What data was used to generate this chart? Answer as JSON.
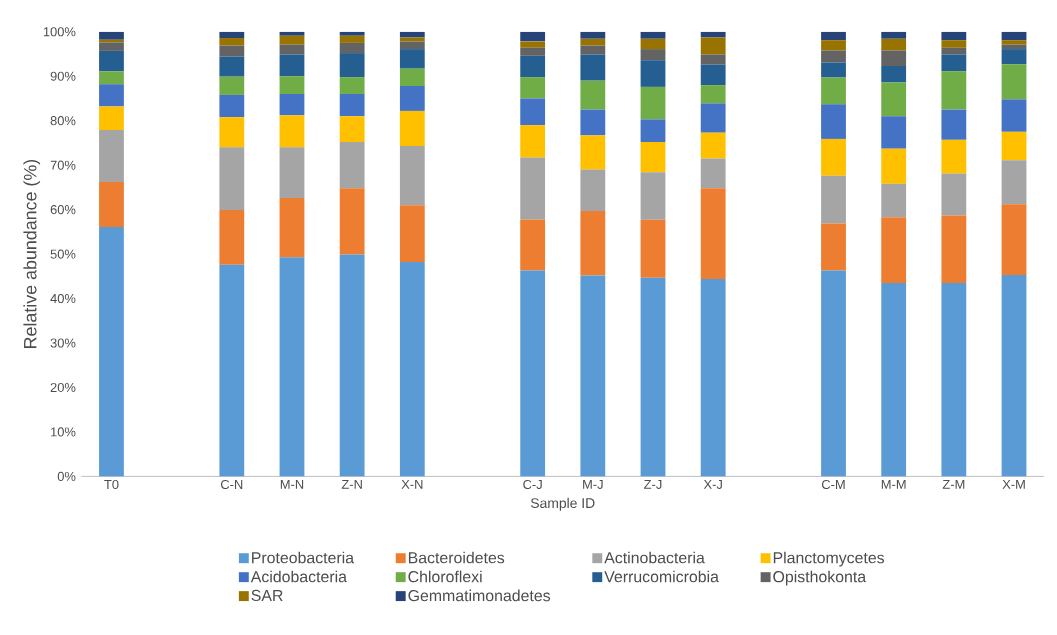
{
  "chart_data": {
    "type": "bar",
    "stacked": true,
    "xlabel": "Sample ID",
    "ylabel": "Relative abundance (%)",
    "categories": [
      "T0",
      null,
      "C-N",
      "M-N",
      "Z-N",
      "X-N",
      null,
      "C-J",
      "M-J",
      "Z-J",
      "X-J",
      null,
      "C-M",
      "M-M",
      "Z-M",
      "X-M"
    ],
    "ylim": [
      0,
      100
    ],
    "yticks": [
      {
        "value": 0,
        "label": "0%"
      },
      {
        "value": 10,
        "label": "10%"
      },
      {
        "value": 20,
        "label": "20%"
      },
      {
        "value": 30,
        "label": "30%"
      },
      {
        "value": 40,
        "label": "40%"
      },
      {
        "value": 50,
        "label": "50%"
      },
      {
        "value": 60,
        "label": "60%"
      },
      {
        "value": 70,
        "label": "70%"
      },
      {
        "value": 80,
        "label": "80%"
      },
      {
        "value": 90,
        "label": "90%"
      },
      {
        "value": 100,
        "label": "100%"
      }
    ],
    "legend": "bottom",
    "series": [
      {
        "name": "Proteobacteria",
        "color": "#5b9bd5",
        "values": [
          56.1,
          null,
          47.6,
          49.3,
          49.9,
          48.2,
          null,
          46.3,
          45.2,
          44.7,
          44.4,
          null,
          46.3,
          43.5,
          43.5,
          45.3
        ]
      },
      {
        "name": "Bacteroidetes",
        "color": "#ed7d31",
        "values": [
          10.1,
          null,
          12.3,
          13.3,
          14.9,
          12.8,
          null,
          11.5,
          14.5,
          13.0,
          20.4,
          null,
          10.6,
          14.8,
          15.2,
          15.9
        ]
      },
      {
        "name": "Actinobacteria",
        "color": "#a5a5a5",
        "values": [
          11.7,
          null,
          14.1,
          11.4,
          10.4,
          13.3,
          null,
          13.9,
          9.3,
          10.7,
          6.7,
          null,
          10.7,
          7.5,
          9.4,
          9.9
        ]
      },
      {
        "name": "Planctomycetes",
        "color": "#ffc000",
        "values": [
          5.3,
          null,
          6.8,
          7.2,
          5.8,
          7.9,
          null,
          7.3,
          7.7,
          6.8,
          5.8,
          null,
          8.3,
          7.9,
          7.6,
          6.4
        ]
      },
      {
        "name": "Acidobacteria",
        "color": "#4472c4",
        "values": [
          5.0,
          null,
          5.0,
          4.8,
          5.0,
          5.6,
          null,
          6.0,
          5.8,
          5.1,
          6.6,
          null,
          7.8,
          7.3,
          6.8,
          7.3
        ]
      },
      {
        "name": "Chloroflexi",
        "color": "#70ad47",
        "values": [
          2.9,
          null,
          4.1,
          4.0,
          3.8,
          3.9,
          null,
          4.8,
          6.5,
          7.3,
          4.1,
          null,
          6.0,
          7.6,
          8.6,
          7.9
        ]
      },
      {
        "name": "Verrucomicrobia",
        "color": "#255e91",
        "values": [
          4.6,
          null,
          4.5,
          4.9,
          5.4,
          4.4,
          null,
          4.8,
          5.9,
          6.0,
          4.6,
          null,
          3.4,
          3.7,
          3.8,
          3.4
        ]
      },
      {
        "name": "Opisthokonta",
        "color": "#636363",
        "values": [
          1.9,
          null,
          2.5,
          2.2,
          2.3,
          1.7,
          null,
          1.8,
          2.0,
          2.5,
          2.3,
          null,
          2.7,
          3.5,
          1.5,
          1.0
        ]
      },
      {
        "name": "SAR",
        "color": "#997300",
        "values": [
          0.6,
          null,
          1.7,
          2.0,
          1.6,
          0.9,
          null,
          1.4,
          1.5,
          2.3,
          3.8,
          null,
          2.3,
          2.6,
          1.7,
          1.0
        ]
      },
      {
        "name": "Gemmatimonadetes",
        "color": "#264478",
        "values": [
          1.8,
          null,
          1.4,
          0.9,
          0.9,
          1.3,
          null,
          2.2,
          1.6,
          1.6,
          1.3,
          null,
          1.9,
          1.6,
          1.9,
          1.9
        ]
      }
    ]
  }
}
